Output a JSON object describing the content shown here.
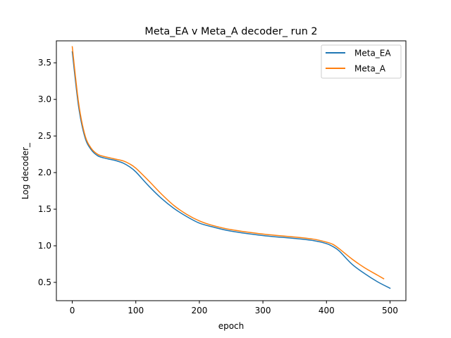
{
  "chart_data": {
    "type": "line",
    "title": "Meta_EA v Meta_A decoder_ run 2",
    "xlabel": "epoch",
    "ylabel": "Log decoder_",
    "xlim": [
      -25,
      525
    ],
    "ylim": [
      0.25,
      3.8
    ],
    "xticks": [
      0,
      100,
      200,
      300,
      400,
      500
    ],
    "yticks": [
      0.5,
      1.0,
      1.5,
      2.0,
      2.5,
      3.0,
      3.5
    ],
    "xtick_labels": [
      "0",
      "100",
      "200",
      "300",
      "400",
      "500"
    ],
    "ytick_labels": [
      "0.5",
      "1.0",
      "1.5",
      "2.0",
      "2.5",
      "3.0",
      "3.5"
    ],
    "grid": false,
    "legend": "top-right",
    "series": [
      {
        "name": "Meta_EA",
        "color": "#1f77b4",
        "x": [
          0,
          10,
          20,
          30,
          40,
          50,
          60,
          70,
          80,
          90,
          100,
          120,
          140,
          160,
          180,
          200,
          220,
          250,
          300,
          350,
          380,
          400,
          410,
          420,
          440,
          460,
          480,
          500
        ],
        "y": [
          3.65,
          2.9,
          2.48,
          2.31,
          2.23,
          2.2,
          2.18,
          2.16,
          2.13,
          2.08,
          2.01,
          1.82,
          1.65,
          1.51,
          1.4,
          1.31,
          1.26,
          1.2,
          1.14,
          1.1,
          1.07,
          1.03,
          0.99,
          0.93,
          0.75,
          0.62,
          0.51,
          0.42
        ]
      },
      {
        "name": "Meta_A",
        "color": "#ff7f0e",
        "x": [
          0,
          10,
          20,
          30,
          40,
          50,
          60,
          70,
          80,
          90,
          100,
          120,
          140,
          160,
          180,
          200,
          220,
          250,
          300,
          350,
          380,
          400,
          410,
          420,
          440,
          460,
          480,
          490
        ],
        "y": [
          3.72,
          2.95,
          2.51,
          2.33,
          2.25,
          2.22,
          2.2,
          2.18,
          2.16,
          2.12,
          2.06,
          1.89,
          1.71,
          1.55,
          1.43,
          1.34,
          1.28,
          1.22,
          1.16,
          1.12,
          1.09,
          1.05,
          1.02,
          0.96,
          0.82,
          0.7,
          0.6,
          0.55
        ]
      }
    ]
  }
}
